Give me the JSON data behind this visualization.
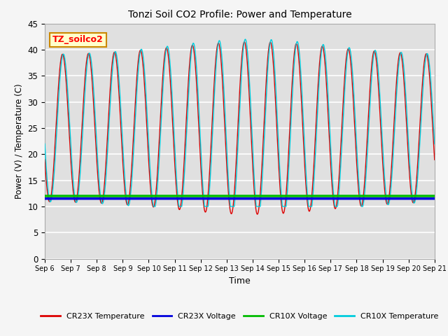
{
  "title": "Tonzi Soil CO2 Profile: Power and Temperature",
  "xlabel": "Time",
  "ylabel": "Power (V) / Temperature (C)",
  "ylim": [
    0,
    45
  ],
  "xlim": [
    0,
    15
  ],
  "x_tick_labels": [
    "Sep 6",
    "Sep 7",
    "Sep 8",
    "Sep 9",
    "Sep 10",
    "Sep 11",
    "Sep 12",
    "Sep 13",
    "Sep 14",
    "Sep 15",
    "Sep 16",
    "Sep 17",
    "Sep 18",
    "Sep 19",
    "Sep 20",
    "Sep 21"
  ],
  "cr23x_voltage_value": 11.5,
  "cr10x_voltage_value": 12.0,
  "cr23x_voltage_color": "#0000dd",
  "cr10x_voltage_color": "#00bb00",
  "cr23x_temp_color": "#dd0000",
  "cr10x_temp_color": "#00ccdd",
  "annotation_text": "TZ_soilco2",
  "annotation_bg": "#ffffcc",
  "annotation_border": "#cc8800",
  "bg_color": "#e0e0e0",
  "grid_color": "#ffffff",
  "legend_labels": [
    "CR23X Temperature",
    "CR23X Voltage",
    "CR10X Voltage",
    "CR10X Temperature"
  ],
  "legend_colors": [
    "#dd0000",
    "#0000dd",
    "#00bb00",
    "#00ccdd"
  ],
  "yticks": [
    0,
    5,
    10,
    15,
    20,
    25,
    30,
    35,
    40,
    45
  ]
}
